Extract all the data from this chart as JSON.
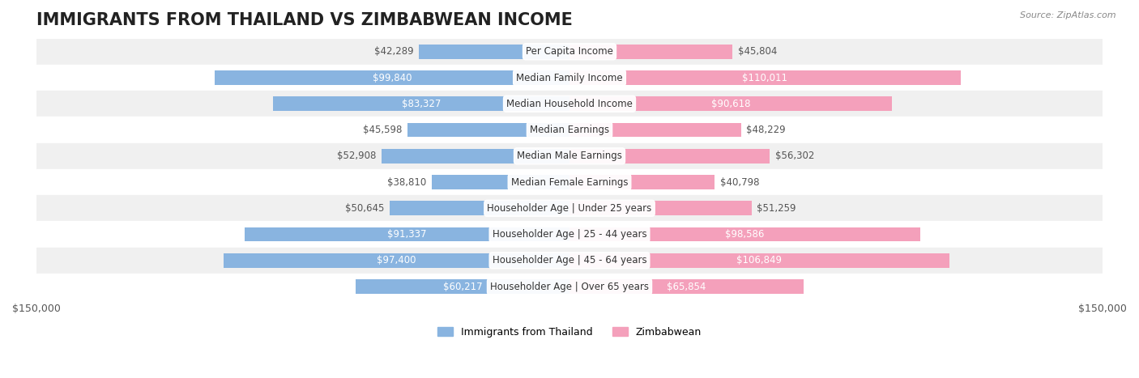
{
  "title": "IMMIGRANTS FROM THAILAND VS ZIMBABWEAN INCOME",
  "source": "Source: ZipAtlas.com",
  "categories": [
    "Per Capita Income",
    "Median Family Income",
    "Median Household Income",
    "Median Earnings",
    "Median Male Earnings",
    "Median Female Earnings",
    "Householder Age | Under 25 years",
    "Householder Age | 25 - 44 years",
    "Householder Age | 45 - 64 years",
    "Householder Age | Over 65 years"
  ],
  "thailand_values": [
    42289,
    99840,
    83327,
    45598,
    52908,
    38810,
    50645,
    91337,
    97400,
    60217
  ],
  "zimbabwe_values": [
    45804,
    110011,
    90618,
    48229,
    56302,
    40798,
    51259,
    98586,
    106849,
    65854
  ],
  "thailand_color": "#89b4e0",
  "zimbabwe_color": "#f4a0bb",
  "thailand_label_color_high": "#ffffff",
  "thailand_label_color_low": "#555555",
  "zimbabwe_label_color_high": "#ffffff",
  "zimbabwe_label_color_low": "#555555",
  "max_value": 150000,
  "bar_height": 0.55,
  "row_bg_color": "#f0f0f0",
  "row_bg_color2": "#ffffff",
  "background_color": "#ffffff",
  "legend_thailand": "Immigrants from Thailand",
  "legend_zimbabwe": "Zimbabwean",
  "title_fontsize": 15,
  "label_fontsize": 8.5,
  "category_fontsize": 8.5,
  "axis_fontsize": 9,
  "thailand_high_threshold": 60000,
  "zimbabwe_high_threshold": 60000
}
